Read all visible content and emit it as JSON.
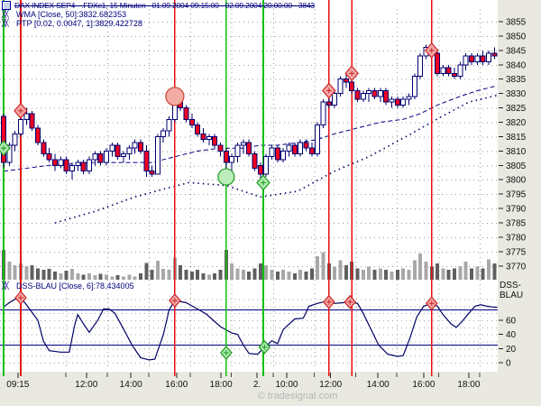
{
  "header": {
    "title": "DAX INDEX SEP4 - .FDXc1, 15 Minuten - 01.09.2004 09:15:00 - 02.09.2004 20:00:00 - 3843",
    "indicators": [
      {
        "icon": "╳╳",
        "label": "WMA [Close, 50]:3832.682353"
      },
      {
        "icon": "╳╳",
        "label": "PTP [0.02, 0.0047, 1]:3829.422728"
      }
    ]
  },
  "dss_panel": {
    "icon": "╳╳",
    "label": "DSS-BLAU [Close, 6]:78.434005",
    "axis_name": "DSS-BLAU",
    "ticks": [
      60,
      40,
      20,
      0
    ],
    "bands": [
      75,
      25
    ]
  },
  "price_axis": {
    "ticks": [
      3855,
      3850,
      3845,
      3840,
      3835,
      3830,
      3825,
      3820,
      3815,
      3810,
      3805,
      3800,
      3795,
      3790,
      3785,
      3780,
      3775,
      3770
    ]
  },
  "time_axis": {
    "ticks": [
      {
        "label": "09:15",
        "bar": 2.5
      },
      {
        "label": "12:00",
        "bar": 14.5
      },
      {
        "label": "14:00",
        "bar": 22.3
      },
      {
        "label": "16:00",
        "bar": 30.3
      },
      {
        "label": "18:00",
        "bar": 38.1
      },
      {
        "label": "2.",
        "bar": 44.4
      },
      {
        "label": "10:00",
        "bar": 49.6
      },
      {
        "label": "12:00",
        "bar": 57.3
      },
      {
        "label": "14:00",
        "bar": 65.6
      },
      {
        "label": "16:00",
        "bar": 73.6
      },
      {
        "label": "18:00",
        "bar": 81.5
      }
    ]
  },
  "watermark": "© tradesignal.com",
  "colors": {
    "navy": "#000080",
    "candle_down": "#ee0022",
    "candle_up": "#ffffff",
    "signal_red": "#e81010",
    "signal_green": "#10c010",
    "marker_red_fill": "#f4a9a9",
    "marker_red_stroke": "#cc2222",
    "marker_green_fill": "#aeeab0",
    "marker_green_stroke": "#1a9a1a",
    "grid": "#9a9a9a",
    "axis_bg": "#e9e9e1",
    "vol_dark": "#5f5f5f",
    "vol_light": "#a8a8a8"
  },
  "chart_data": {
    "type": "candlestick+volume+oscillator",
    "instrument": "DAX INDEX SEP4 - .FDXc1",
    "timeframe": "15 Minuten",
    "period": "01.09.2004 09:15:00 - 02.09.2004 20:00:00",
    "last_price": 3843,
    "ylim_price": [
      3769,
      3857
    ],
    "ylim_dss": [
      0,
      100
    ],
    "candles": [
      [
        3822,
        3823,
        3804,
        3806
      ],
      [
        3806,
        3813,
        3805,
        3812
      ],
      [
        3812,
        3817,
        3810,
        3816
      ],
      [
        3816,
        3823,
        3815,
        3821
      ],
      [
        3821,
        3825,
        3819,
        3823
      ],
      [
        3823,
        3824,
        3817,
        3818
      ],
      [
        3818,
        3819,
        3812,
        3813
      ],
      [
        3813,
        3814,
        3808,
        3809
      ],
      [
        3809,
        3811,
        3806,
        3807
      ],
      [
        3807,
        3809,
        3803,
        3805
      ],
      [
        3805,
        3808,
        3804,
        3807
      ],
      [
        3807,
        3808,
        3802,
        3803
      ],
      [
        3803,
        3806,
        3800,
        3805
      ],
      [
        3805,
        3807,
        3803,
        3806
      ],
      [
        3806,
        3807,
        3802,
        3803
      ],
      [
        3803,
        3808,
        3802,
        3807
      ],
      [
        3807,
        3810,
        3805,
        3809
      ],
      [
        3809,
        3810,
        3805,
        3806
      ],
      [
        3806,
        3811,
        3805,
        3810
      ],
      [
        3810,
        3813,
        3808,
        3812
      ],
      [
        3812,
        3813,
        3807,
        3808
      ],
      [
        3808,
        3810,
        3806,
        3809
      ],
      [
        3809,
        3812,
        3807,
        3811
      ],
      [
        3811,
        3814,
        3809,
        3813
      ],
      [
        3813,
        3814,
        3809,
        3810
      ],
      [
        3810,
        3812,
        3801,
        3803
      ],
      [
        3803,
        3805,
        3801,
        3802
      ],
      [
        3802,
        3816,
        3802,
        3815
      ],
      [
        3815,
        3818,
        3813,
        3817
      ],
      [
        3817,
        3822,
        3815,
        3821
      ],
      [
        3821,
        3830,
        3820,
        3828
      ],
      [
        3828,
        3830,
        3824,
        3825
      ],
      [
        3825,
        3826,
        3820,
        3821
      ],
      [
        3821,
        3823,
        3818,
        3819
      ],
      [
        3819,
        3820,
        3815,
        3816
      ],
      [
        3816,
        3818,
        3813,
        3814
      ],
      [
        3814,
        3816,
        3812,
        3815
      ],
      [
        3815,
        3816,
        3811,
        3812
      ],
      [
        3812,
        3813,
        3808,
        3810
      ],
      [
        3810,
        3811,
        3801,
        3806
      ],
      [
        3806,
        3809,
        3803,
        3808
      ],
      [
        3808,
        3813,
        3806,
        3812
      ],
      [
        3812,
        3814,
        3809,
        3813
      ],
      [
        3813,
        3814,
        3808,
        3809
      ],
      [
        3809,
        3810,
        3803,
        3804
      ],
      [
        3805,
        3806,
        3798,
        3802
      ],
      [
        3802,
        3809,
        3801,
        3808
      ],
      [
        3808,
        3812,
        3807,
        3811
      ],
      [
        3811,
        3812,
        3806,
        3807
      ],
      [
        3807,
        3811,
        3806,
        3810
      ],
      [
        3810,
        3813,
        3808,
        3812
      ],
      [
        3812,
        3813,
        3808,
        3809
      ],
      [
        3809,
        3814,
        3808,
        3813
      ],
      [
        3813,
        3814,
        3810,
        3811
      ],
      [
        3811,
        3813,
        3808,
        3809
      ],
      [
        3809,
        3820,
        3808,
        3819
      ],
      [
        3819,
        3828,
        3818,
        3827
      ],
      [
        3827,
        3830,
        3825,
        3826
      ],
      [
        3826,
        3831,
        3825,
        3830
      ],
      [
        3830,
        3836,
        3829,
        3835
      ],
      [
        3835,
        3837,
        3832,
        3834
      ],
      [
        3834,
        3837,
        3830,
        3831
      ],
      [
        3831,
        3832,
        3827,
        3828
      ],
      [
        3828,
        3831,
        3827,
        3830
      ],
      [
        3830,
        3832,
        3827,
        3831
      ],
      [
        3831,
        3832,
        3828,
        3829
      ],
      [
        3829,
        3832,
        3827,
        3831
      ],
      [
        3831,
        3832,
        3826,
        3827
      ],
      [
        3827,
        3829,
        3825,
        3828
      ],
      [
        3828,
        3829,
        3825,
        3826
      ],
      [
        3826,
        3829,
        3825,
        3828
      ],
      [
        3828,
        3830,
        3826,
        3829
      ],
      [
        3829,
        3837,
        3828,
        3836
      ],
      [
        3836,
        3844,
        3835,
        3843
      ],
      [
        3843,
        3847,
        3842,
        3846
      ],
      [
        3846,
        3847,
        3843,
        3844
      ],
      [
        3844,
        3845,
        3836,
        3837
      ],
      [
        3837,
        3840,
        3836,
        3839
      ],
      [
        3839,
        3840,
        3836,
        3837
      ],
      [
        3837,
        3839,
        3835,
        3836
      ],
      [
        3836,
        3841,
        3835,
        3840
      ],
      [
        3840,
        3844,
        3838,
        3843
      ],
      [
        3843,
        3844,
        3840,
        3841
      ],
      [
        3841,
        3844,
        3840,
        3843
      ],
      [
        3843,
        3845,
        3840,
        3841
      ],
      [
        3841,
        3845,
        3840,
        3844
      ],
      [
        3844,
        3846,
        3842,
        3843
      ]
    ],
    "volume_rel": [
      0.92,
      0.55,
      0.45,
      0.5,
      0.42,
      0.45,
      0.35,
      0.3,
      0.33,
      0.25,
      0.2,
      0.28,
      0.33,
      0.2,
      0.15,
      0.2,
      0.14,
      0.18,
      0.15,
      0.1,
      0.14,
      0.1,
      0.15,
      0.1,
      0.2,
      0.52,
      0.3,
      0.58,
      0.33,
      0.3,
      0.68,
      0.45,
      0.3,
      0.25,
      0.3,
      0.2,
      0.15,
      0.2,
      0.3,
      0.92,
      0.5,
      0.35,
      0.3,
      0.25,
      0.35,
      0.5,
      0.45,
      0.3,
      0.25,
      0.3,
      0.25,
      0.2,
      0.3,
      0.25,
      0.35,
      0.72,
      0.85,
      0.5,
      0.4,
      0.6,
      0.45,
      0.55,
      0.35,
      0.3,
      0.4,
      0.3,
      0.35,
      0.3,
      0.25,
      0.3,
      0.35,
      0.3,
      0.6,
      0.8,
      0.55,
      0.4,
      0.5,
      0.35,
      0.3,
      0.35,
      0.42,
      0.55,
      0.35,
      0.4,
      0.35,
      0.62,
      0.5
    ],
    "wma_points": [
      [
        0,
        3803
      ],
      [
        8,
        3805
      ],
      [
        16,
        3806
      ],
      [
        22,
        3806
      ],
      [
        26,
        3806
      ],
      [
        30,
        3808
      ],
      [
        34,
        3810
      ],
      [
        38,
        3811
      ],
      [
        42,
        3811
      ],
      [
        45,
        3812
      ],
      [
        48,
        3812
      ],
      [
        52,
        3813
      ],
      [
        55,
        3814
      ],
      [
        58,
        3816
      ],
      [
        62,
        3818
      ],
      [
        66,
        3820
      ],
      [
        70,
        3821
      ],
      [
        73,
        3823
      ],
      [
        76,
        3826
      ],
      [
        80,
        3829
      ],
      [
        83,
        3831
      ],
      [
        86.5,
        3832.7
      ]
    ],
    "ptp_points": [
      [
        9,
        3785
      ],
      [
        16,
        3789
      ],
      [
        23,
        3794
      ],
      [
        28.5,
        3797
      ],
      [
        32.5,
        3799
      ],
      [
        39,
        3798
      ],
      [
        45,
        3794
      ],
      [
        51.5,
        3796
      ],
      [
        58,
        3803
      ],
      [
        64,
        3808
      ],
      [
        70.5,
        3815
      ],
      [
        76.8,
        3822
      ],
      [
        81.5,
        3827
      ],
      [
        86.5,
        3829.4
      ]
    ],
    "dss_points": [
      [
        0,
        79
      ],
      [
        1,
        85
      ],
      [
        2,
        90
      ],
      [
        3,
        92
      ],
      [
        4,
        82
      ],
      [
        6,
        60
      ],
      [
        7,
        30
      ],
      [
        8,
        17
      ],
      [
        10,
        15
      ],
      [
        11.5,
        15
      ],
      [
        12.5,
        55
      ],
      [
        13,
        68
      ],
      [
        14,
        55
      ],
      [
        15,
        43
      ],
      [
        16.5,
        60
      ],
      [
        17.5,
        76
      ],
      [
        18.5,
        76
      ],
      [
        19.5,
        70
      ],
      [
        21,
        48
      ],
      [
        22.5,
        25
      ],
      [
        24,
        7
      ],
      [
        25.5,
        4
      ],
      [
        26.5,
        5
      ],
      [
        28,
        40
      ],
      [
        29,
        75
      ],
      [
        30,
        88
      ],
      [
        32,
        85
      ],
      [
        33.5,
        78
      ],
      [
        35.5,
        69
      ],
      [
        38,
        51
      ],
      [
        40,
        42
      ],
      [
        41,
        40
      ],
      [
        42,
        25
      ],
      [
        43,
        13
      ],
      [
        44.5,
        12
      ],
      [
        45.7,
        22
      ],
      [
        47,
        31
      ],
      [
        48,
        27
      ],
      [
        49,
        47
      ],
      [
        51,
        62
      ],
      [
        52.5,
        63
      ],
      [
        53.5,
        80
      ],
      [
        55,
        84
      ],
      [
        56,
        86
      ],
      [
        57,
        86
      ],
      [
        58,
        84
      ],
      [
        59.5,
        85
      ],
      [
        60.7,
        86
      ],
      [
        62,
        84
      ],
      [
        63,
        70
      ],
      [
        64.5,
        45
      ],
      [
        65.7,
        25
      ],
      [
        67.3,
        12
      ],
      [
        69,
        9
      ],
      [
        70,
        10
      ],
      [
        71.2,
        35
      ],
      [
        72.4,
        65
      ],
      [
        73.6,
        80
      ],
      [
        75,
        84
      ],
      [
        76,
        80
      ],
      [
        77,
        68
      ],
      [
        78.4,
        55
      ],
      [
        79.3,
        50
      ],
      [
        80.3,
        58
      ],
      [
        81.5,
        70
      ],
      [
        82.6,
        80
      ],
      [
        83.6,
        82
      ],
      [
        84.7,
        80
      ],
      [
        85.6,
        79
      ],
      [
        86.5,
        78.4
      ]
    ],
    "markers_price": [
      {
        "bar": 0,
        "price": 3811,
        "shape": "diamond",
        "variant": "green"
      },
      {
        "bar": 3,
        "price": 3824,
        "shape": "diamond",
        "variant": "red"
      },
      {
        "bar": 30,
        "price": 3829,
        "shape": "circle",
        "variant": "red",
        "r": 10
      },
      {
        "bar": 39,
        "price": 3801,
        "shape": "circle",
        "variant": "green",
        "r": 9
      },
      {
        "bar": 45.5,
        "price": 3799,
        "shape": "diamond",
        "variant": "green"
      },
      {
        "bar": 57,
        "price": 3831,
        "shape": "diamond",
        "variant": "red"
      },
      {
        "bar": 61,
        "price": 3837,
        "shape": "diamond",
        "variant": "red"
      },
      {
        "bar": 75,
        "price": 3845,
        "shape": "diamond",
        "variant": "red"
      }
    ],
    "markers_dss": [
      {
        "bar": 3,
        "value": 92,
        "variant": "red"
      },
      {
        "bar": 30,
        "value": 88,
        "variant": "red"
      },
      {
        "bar": 39,
        "value": 14,
        "variant": "green"
      },
      {
        "bar": 45.7,
        "value": 22,
        "variant": "green"
      },
      {
        "bar": 57,
        "value": 86,
        "variant": "red"
      },
      {
        "bar": 60.7,
        "value": 86,
        "variant": "red"
      },
      {
        "bar": 75,
        "value": 84,
        "variant": "red"
      }
    ],
    "signal_lines": [
      {
        "bar": 0,
        "color": "green"
      },
      {
        "bar": 3,
        "color": "red"
      },
      {
        "bar": 30,
        "color": "red"
      },
      {
        "bar": 39,
        "color": "green"
      },
      {
        "bar": 45.5,
        "color": "green"
      },
      {
        "bar": 57,
        "color": "red"
      },
      {
        "bar": 61,
        "color": "red"
      },
      {
        "bar": 75,
        "color": "red"
      }
    ],
    "grid_bars": [
      10.9,
      18.2,
      25.4,
      32.7,
      39.9,
      47.2,
      54.4,
      61.7,
      68.9,
      76.2,
      83.4
    ]
  }
}
